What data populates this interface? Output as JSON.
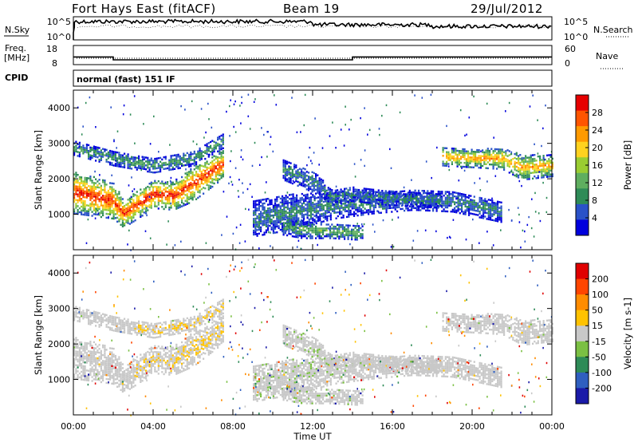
{
  "header": {
    "station": "Fort Hays East (fitACF)",
    "beam": "Beam 19",
    "date": "29/Jul/2012"
  },
  "top_panel": {
    "left_label": "N.Sky",
    "right_label": "N.Search",
    "left_ticks": [
      "10^5",
      "10^0"
    ],
    "right_ticks": [
      "10^5",
      "10^0"
    ]
  },
  "freq_panel": {
    "left_label_1": "Freq.",
    "left_label_2": "[MHz]",
    "right_label": "Nave",
    "left_ticks": [
      "18",
      "8"
    ],
    "right_ticks": [
      "60",
      "0"
    ],
    "freq_steps": [
      {
        "start_h": 0.0,
        "end_h": 2.0,
        "mhz": 12.0
      },
      {
        "start_h": 2.0,
        "end_h": 14.0,
        "mhz": 10.5
      },
      {
        "start_h": 14.0,
        "end_h": 24.0,
        "mhz": 12.0
      }
    ]
  },
  "cpid": {
    "label": "CPID",
    "mode": "normal (fast) 151 IF"
  },
  "power_colorbar": {
    "label": "Power [dB]",
    "ticks": [
      "28",
      "24",
      "20",
      "16",
      "12",
      "8",
      "4"
    ],
    "colors": [
      "#0000dd",
      "#2a52c8",
      "#2e8b57",
      "#5fae5f",
      "#9acd32",
      "#ffd21f",
      "#ff9a00",
      "#ff5500",
      "#e60000"
    ]
  },
  "velocity_colorbar": {
    "label": "Velocity [m s-1]",
    "ticks": [
      "200",
      "100",
      "50",
      "15",
      "-15",
      "-50",
      "-100",
      "-200"
    ],
    "colors": [
      "#1a1aa8",
      "#2f5fc0",
      "#2e8b57",
      "#7bc043",
      "#c8c8c8",
      "#ffc200",
      "#ff8c00",
      "#ff4500",
      "#e00000"
    ]
  },
  "x_axis": {
    "label": "Time UT",
    "ticks": [
      "00:00",
      "04:00",
      "08:00",
      "12:00",
      "16:00",
      "20:00",
      "00:00"
    ]
  },
  "chart_data": [
    {
      "type": "heatmap",
      "title": "Power",
      "xlabel": "Time UT",
      "ylabel": "Slant Range [km]",
      "xlim": [
        0,
        24
      ],
      "ylim": [
        0,
        4500
      ],
      "y_ticks": [
        1000,
        2000,
        3000,
        4000
      ],
      "colorbar": {
        "label": "Power [dB]",
        "range": [
          0,
          30
        ],
        "ticks": [
          4,
          8,
          12,
          16,
          20,
          24,
          28
        ]
      },
      "echo_bands": [
        {
          "t": [
            0,
            2,
            2.5,
            4,
            5,
            6,
            7.5
          ],
          "center_km": [
            1650,
            1400,
            1050,
            1600,
            1550,
            1900,
            2450
          ],
          "width_km": [
            600,
            500,
            400,
            400,
            400,
            500,
            400
          ],
          "peak_db": 28
        },
        {
          "t": [
            0,
            2,
            4,
            6,
            7.5
          ],
          "center_km": [
            2900,
            2600,
            2400,
            2600,
            3100
          ],
          "width_km": [
            200,
            200,
            200,
            200,
            200
          ],
          "peak_db": 10
        },
        {
          "t": [
            9,
            11,
            13,
            15,
            17,
            19,
            21.5
          ],
          "center_km": [
            900,
            1100,
            1300,
            1350,
            1450,
            1400,
            1100
          ],
          "width_km": [
            500,
            500,
            400,
            300,
            300,
            300,
            300
          ],
          "peak_db": 8
        },
        {
          "t": [
            10.5,
            12,
            13,
            14,
            15.5,
            18.5
          ],
          "center_km": [
            2300,
            1950,
            1500,
            1600,
            1500,
            1400
          ],
          "width_km": [
            300,
            300,
            200,
            200,
            200,
            200
          ],
          "peak_db": 8
        },
        {
          "t": [
            10.5,
            11.5,
            13,
            14.5
          ],
          "center_km": [
            700,
            600,
            550,
            500
          ],
          "width_km": [
            250,
            250,
            200,
            200
          ],
          "peak_db": 12
        },
        {
          "t": [
            18.5,
            20,
            21.5,
            22.5,
            24
          ],
          "center_km": [
            2650,
            2600,
            2600,
            2350,
            2400
          ],
          "width_km": [
            250,
            250,
            300,
            350,
            300
          ],
          "peak_db": 22
        }
      ]
    },
    {
      "type": "heatmap",
      "title": "Velocity",
      "xlabel": "Time UT",
      "ylabel": "Slant Range [km]",
      "xlim": [
        0,
        24
      ],
      "ylim": [
        0,
        4500
      ],
      "y_ticks": [
        1000,
        2000,
        3000,
        4000
      ],
      "colorbar": {
        "label": "Velocity [m s-1]",
        "range": [
          -250,
          250
        ],
        "ticks": [
          200,
          100,
          50,
          15,
          -15,
          -50,
          -100,
          -200
        ]
      },
      "note_values": {
        "dominant_velocity_m_s": 0,
        "patches_m_s": [
          -60,
          -90,
          60
        ]
      }
    }
  ]
}
